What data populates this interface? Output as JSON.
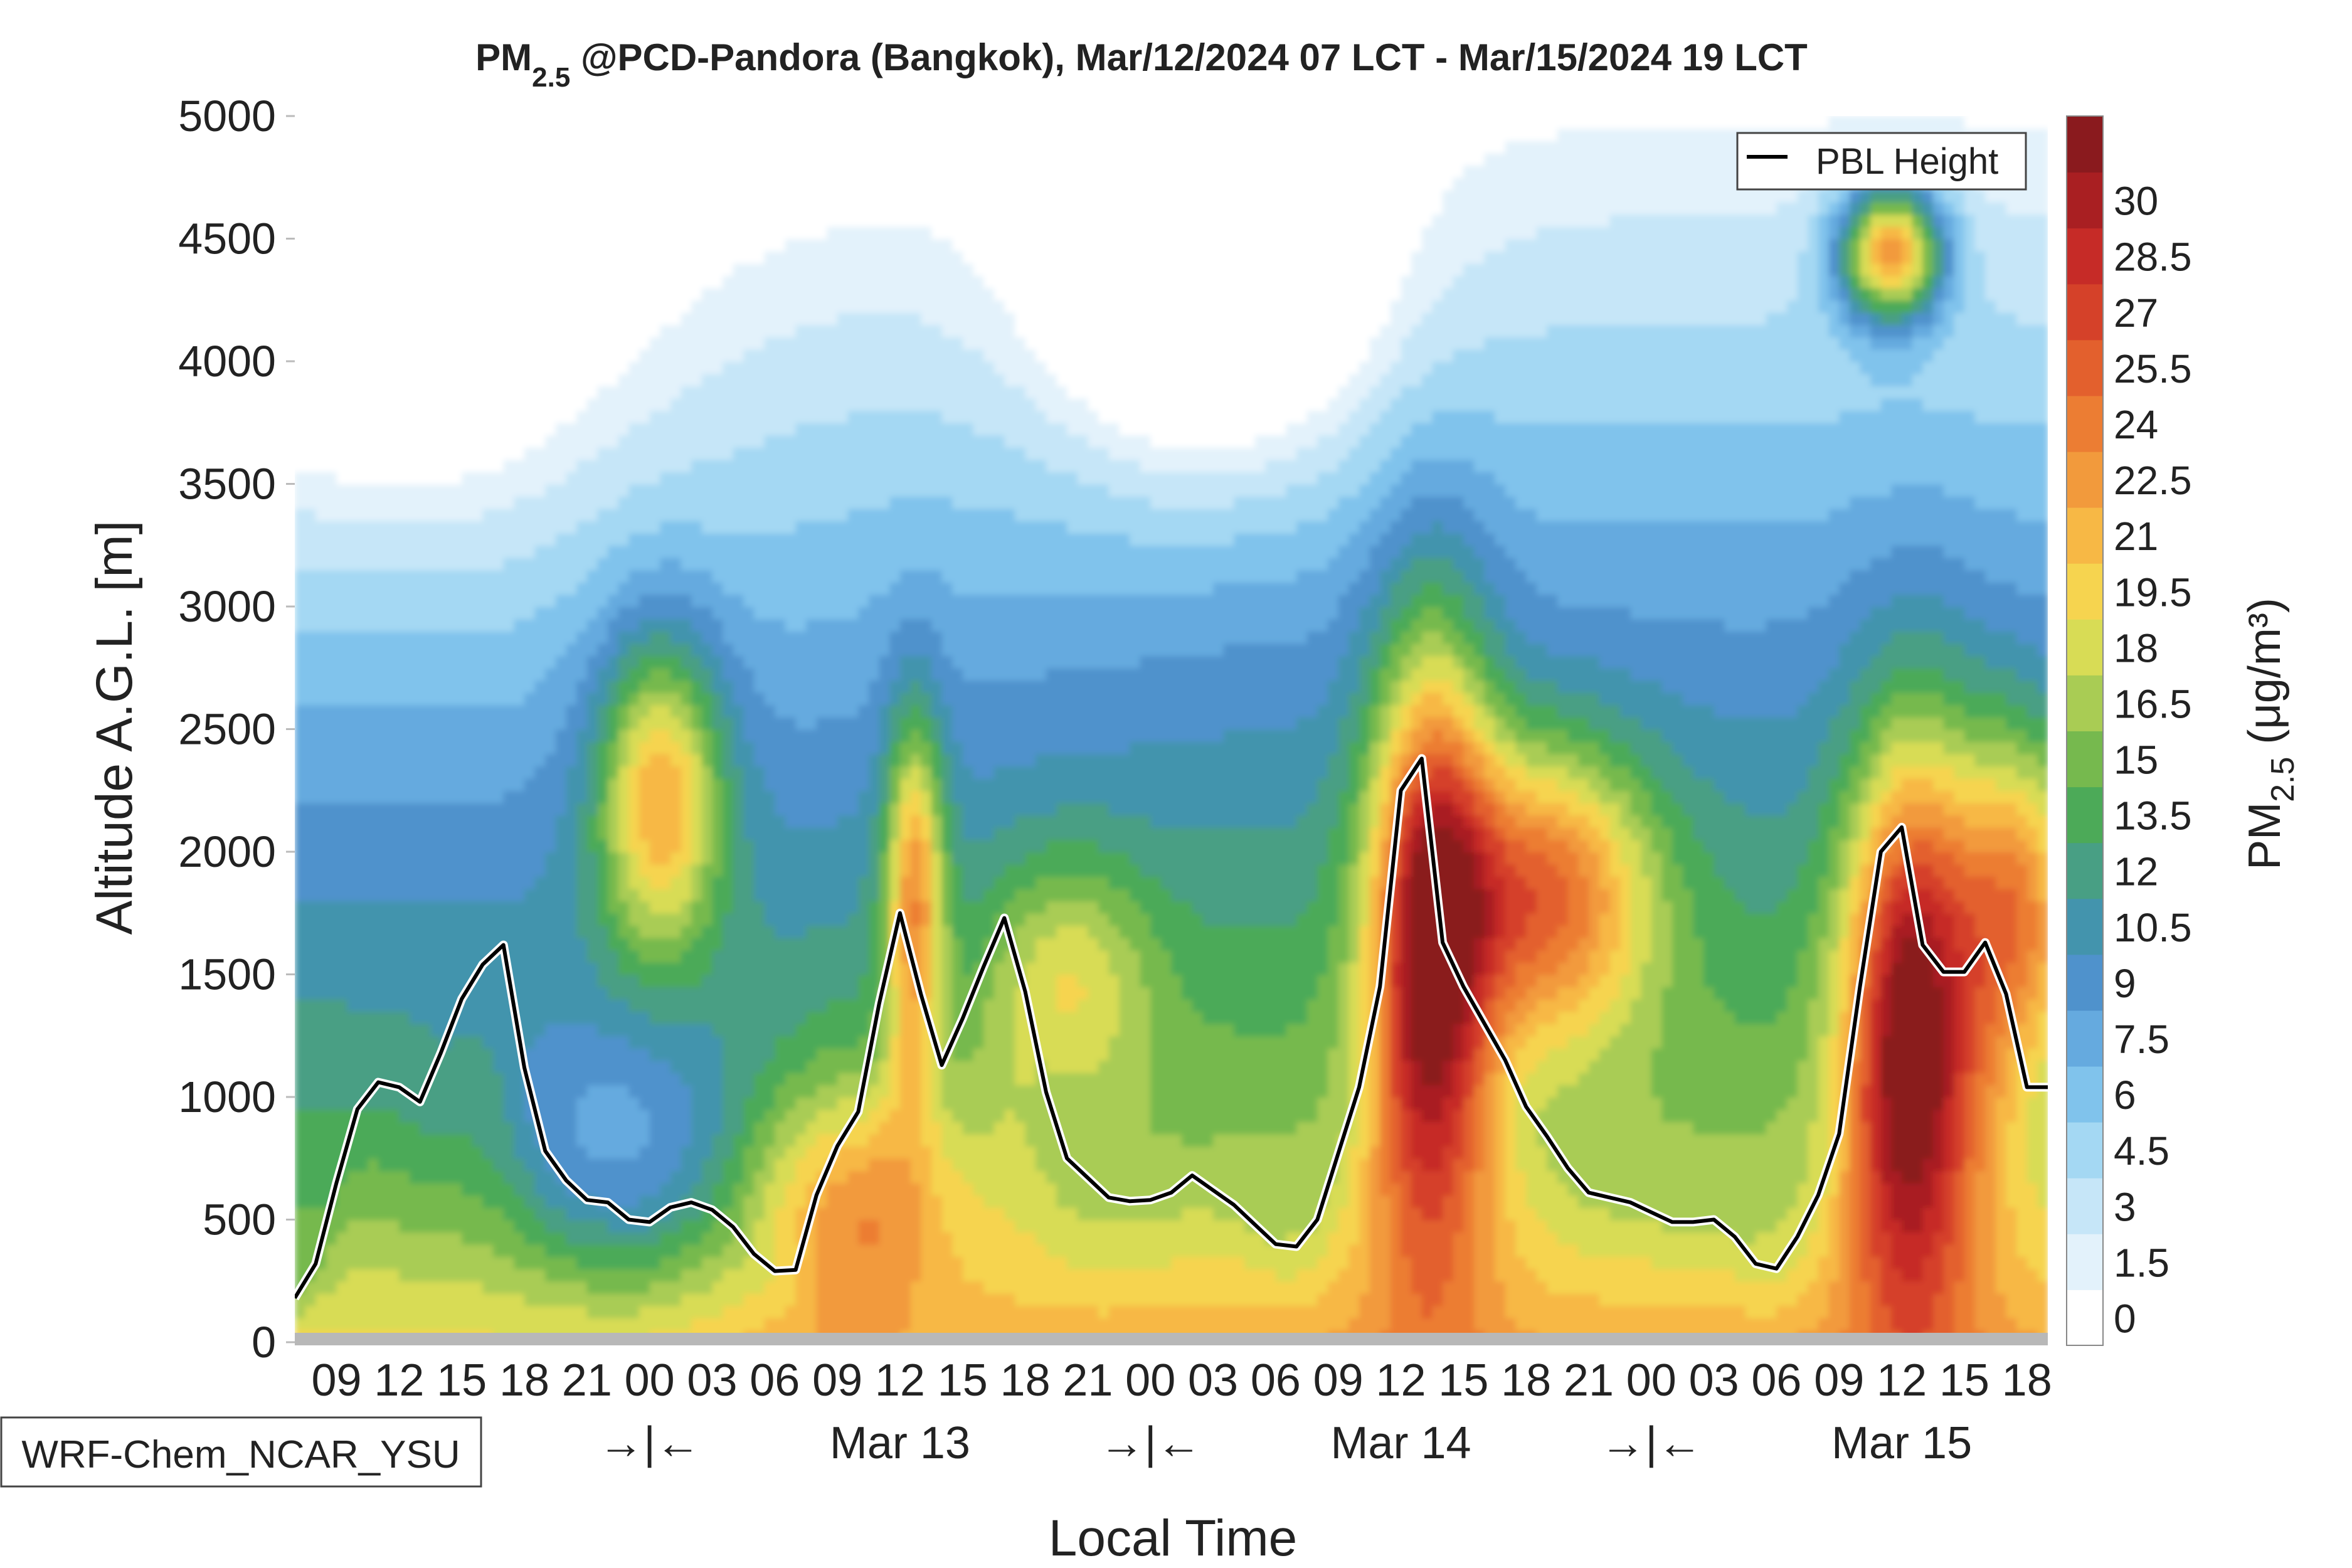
{
  "chart_data": {
    "type": "heatmap",
    "title": {
      "prefix": "PM",
      "subscript": "2.5",
      "rest": " @PCD-Pandora (Bangkok), Mar/12/2024 07 LCT - Mar/15/2024 19 LCT"
    },
    "xlabel": "Local Time",
    "ylabel": "Altitude A.G.L. [m]",
    "ylim": [
      0,
      5000
    ],
    "y_ticks": [
      0,
      500,
      1000,
      1500,
      2000,
      2500,
      3000,
      3500,
      4000,
      4500,
      5000
    ],
    "x_range_hours": [
      0,
      84
    ],
    "x_tick_labels": [
      {
        "h": 2,
        "label": "09"
      },
      {
        "h": 5,
        "label": "12"
      },
      {
        "h": 8,
        "label": "15"
      },
      {
        "h": 11,
        "label": "18"
      },
      {
        "h": 14,
        "label": "21"
      },
      {
        "h": 17,
        "label": "00"
      },
      {
        "h": 20,
        "label": "03"
      },
      {
        "h": 23,
        "label": "06"
      },
      {
        "h": 26,
        "label": "09"
      },
      {
        "h": 29,
        "label": "12"
      },
      {
        "h": 32,
        "label": "15"
      },
      {
        "h": 35,
        "label": "18"
      },
      {
        "h": 38,
        "label": "21"
      },
      {
        "h": 41,
        "label": "00"
      },
      {
        "h": 44,
        "label": "03"
      },
      {
        "h": 47,
        "label": "06"
      },
      {
        "h": 50,
        "label": "09"
      },
      {
        "h": 53,
        "label": "12"
      },
      {
        "h": 56,
        "label": "15"
      },
      {
        "h": 59,
        "label": "18"
      },
      {
        "h": 62,
        "label": "21"
      },
      {
        "h": 65,
        "label": "00"
      },
      {
        "h": 68,
        "label": "03"
      },
      {
        "h": 71,
        "label": "06"
      },
      {
        "h": 74,
        "label": "09"
      },
      {
        "h": 77,
        "label": "12"
      },
      {
        "h": 80,
        "label": "15"
      },
      {
        "h": 83,
        "label": "18"
      }
    ],
    "day_markers": [
      {
        "h": 17,
        "label": "→|←"
      },
      {
        "h": 29,
        "label": "Mar 13"
      },
      {
        "h": 41,
        "label": "→|←"
      },
      {
        "h": 53,
        "label": "Mar 14"
      },
      {
        "h": 65,
        "label": "→|←"
      },
      {
        "h": 77,
        "label": "Mar 15"
      }
    ],
    "colorbar": {
      "label_prefix": "PM",
      "label_subscript": "2.5",
      "label_units": " (μg/m³)",
      "ticks": [
        "0",
        "1.5",
        "3",
        "4.5",
        "6",
        "7.5",
        "9",
        "10.5",
        "12",
        "13.5",
        "15",
        "16.5",
        "18",
        "19.5",
        "21",
        "22.5",
        "24",
        "25.5",
        "27",
        "28.5",
        "30"
      ],
      "colors": [
        "#ffffff",
        "#e3f2fb",
        "#c6e6f8",
        "#a4d8f3",
        "#80c3ec",
        "#65aadf",
        "#4f92cc",
        "#4394ad",
        "#489f84",
        "#4caa58",
        "#76b94e",
        "#a9cc54",
        "#d8dc55",
        "#f6d44f",
        "#f7b845",
        "#f29a3c",
        "#ec7d33",
        "#e3602d",
        "#d54129",
        "#c62b27",
        "#a91f22",
        "#8a1a1e"
      ]
    },
    "series": [
      {
        "name": "PBL Height",
        "x": [
          0,
          1,
          2,
          3,
          4,
          5,
          6,
          7,
          8,
          9,
          10,
          11,
          12,
          13,
          14,
          15,
          16,
          17,
          18,
          19,
          20,
          21,
          22,
          23,
          24,
          25,
          26,
          27,
          28,
          29,
          30,
          31,
          32,
          33,
          34,
          35,
          36,
          37,
          38,
          39,
          40,
          41,
          42,
          43,
          44,
          45,
          46,
          47,
          48,
          49,
          50,
          51,
          52,
          53,
          54,
          55,
          56,
          57,
          58,
          59,
          60,
          61,
          62,
          63,
          64,
          65,
          66,
          67,
          68,
          69,
          70,
          71,
          72,
          73,
          74,
          75,
          76,
          77,
          78,
          79,
          80,
          81,
          82,
          83,
          84
        ],
        "y": [
          180,
          320,
          650,
          950,
          1060,
          1040,
          980,
          1180,
          1400,
          1540,
          1620,
          1120,
          780,
          660,
          580,
          570,
          500,
          490,
          550,
          570,
          540,
          470,
          360,
          290,
          295,
          600,
          800,
          940,
          1380,
          1750,
          1420,
          1130,
          1320,
          1530,
          1730,
          1430,
          1020,
          750,
          670,
          590,
          575,
          580,
          610,
          680,
          620,
          560,
          480,
          400,
          390,
          500,
          770,
          1040,
          1450,
          2250,
          2380,
          1630,
          1450,
          1300,
          1150,
          960,
          840,
          710,
          610,
          590,
          570,
          530,
          490,
          490,
          500,
          430,
          320,
          300,
          430,
          600,
          850,
          1450,
          2000,
          2100,
          1620,
          1510,
          1510,
          1630,
          1420,
          1040,
          1040
        ]
      }
    ]
  },
  "legend": {
    "pbl_label": "PBL Height"
  },
  "model_label": "WRF-Chem_NCAR_YSU"
}
